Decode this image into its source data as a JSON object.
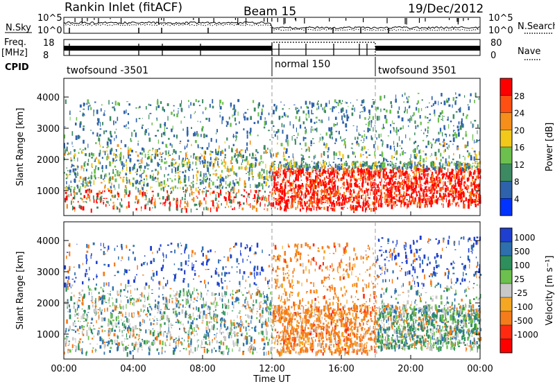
{
  "header": {
    "title": "Rankin Inlet (fitACF)",
    "beam": "Beam 15",
    "date": "19/Dec/2012"
  },
  "sky_panel": {
    "left_label": "N.Sky",
    "right_label": "N.Search",
    "left_ticks": [
      "10^5",
      "10^0"
    ],
    "right_ticks": [
      "10^5",
      "10^0"
    ]
  },
  "freq_panel": {
    "left_label_line1": "Freq.",
    "left_label_line2": "[MHz]",
    "left_ticks": [
      "18",
      "8"
    ],
    "right_ticks": [
      "80",
      "0"
    ],
    "right_label": "Nave"
  },
  "cpid": {
    "label": "CPID",
    "segments": [
      "twofsound -3501",
      "normal 150",
      "twofsound 3501"
    ]
  },
  "chart_data": [
    {
      "type": "heatmap",
      "name": "power",
      "ylabel": "Slant Range [km]",
      "yticks": [
        "1000",
        "2000",
        "3000",
        "4000"
      ],
      "ylim": [
        200,
        4600
      ],
      "colorbar_label": "Power [dB]",
      "colorbar_ticks": [
        "4",
        "8",
        "12",
        "16",
        "20",
        "24",
        "28"
      ],
      "colors": [
        "#0033ff",
        "#2e62ab",
        "#3d8a62",
        "#6cc04d",
        "#f2c81a",
        "#f58e1b",
        "#ff4f13",
        "#ff0000"
      ],
      "x": [
        "00:00",
        "04:00",
        "08:00",
        "12:00",
        "16:00",
        "20:00",
        "00:00"
      ]
    },
    {
      "type": "heatmap",
      "name": "velocity",
      "ylabel": "Slant Range [km]",
      "yticks": [
        "1000",
        "2000",
        "3000",
        "4000"
      ],
      "ylim": [
        200,
        4600
      ],
      "colorbar_label": "Velocity [m s⁻¹]",
      "colorbar_ticks": [
        "1000",
        "500",
        "100",
        "25",
        "-25",
        "-100",
        "-500",
        "-1000"
      ],
      "colors": [
        "#1f3fd0",
        "#2e6fae",
        "#2f8f5c",
        "#6cc04d",
        "#c8c8c8",
        "#f5a623",
        "#f57c1b",
        "#ff2a10",
        "#ff0000"
      ],
      "x": [
        "00:00",
        "04:00",
        "08:00",
        "12:00",
        "16:00",
        "20:00",
        "00:00"
      ]
    }
  ],
  "xaxis": {
    "ticks": [
      "00:00",
      "04:00",
      "08:00",
      "12:00",
      "16:00",
      "20:00",
      "00:00"
    ],
    "label": "Time UT"
  }
}
